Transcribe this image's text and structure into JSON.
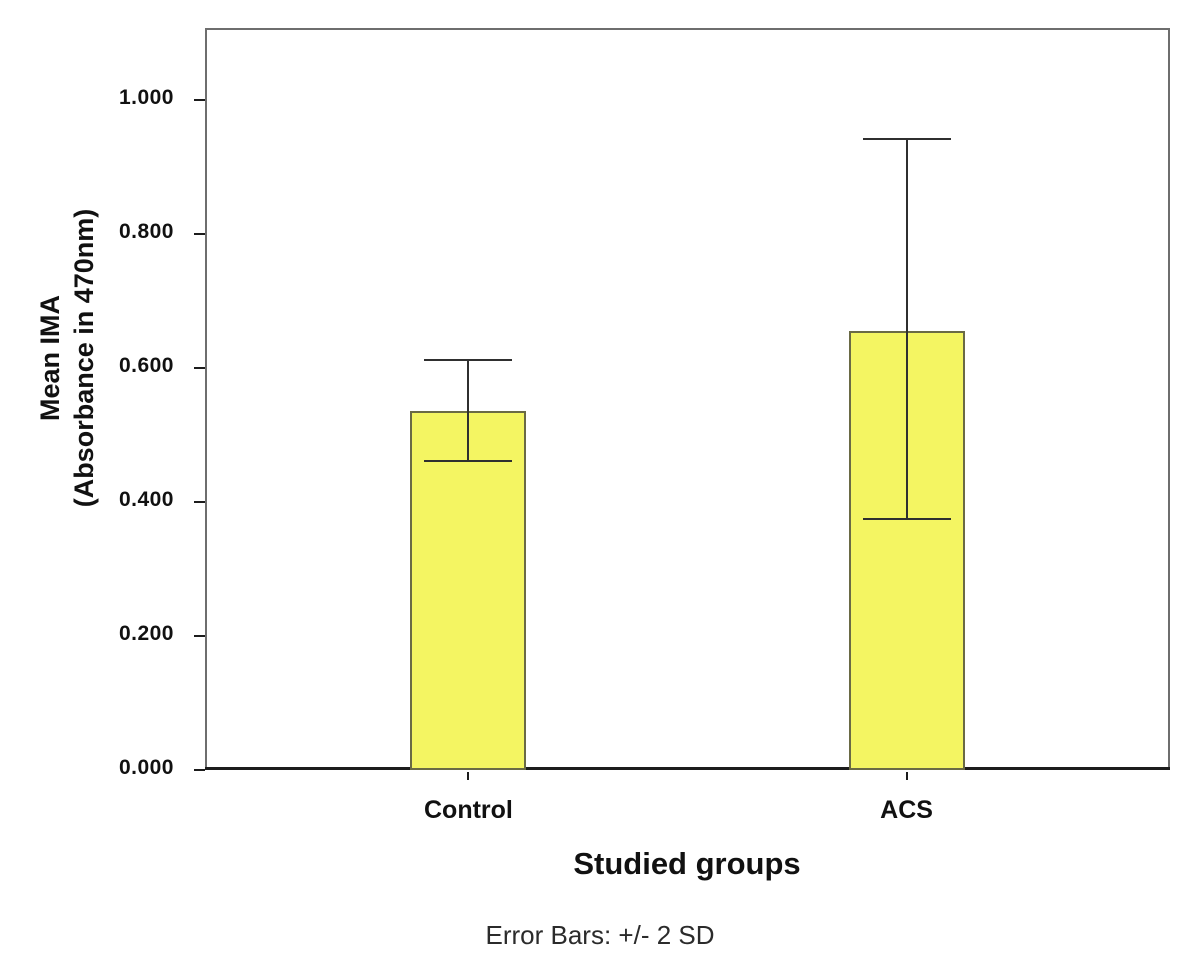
{
  "chart_data": {
    "type": "bar",
    "title": "",
    "categories": [
      "Control",
      "ACS"
    ],
    "values": [
      0.535,
      0.655
    ],
    "error_bars": {
      "label": "+/- 2 SD",
      "upper": [
        0.611,
        0.941
      ],
      "lower": [
        0.461,
        0.374
      ]
    },
    "xlabel": "Studied groups",
    "ylabel_lines": [
      "Mean IMA",
      "(Absorbance in 470nm)"
    ],
    "y_ticks": [
      0.0,
      0.2,
      0.4,
      0.6,
      0.8,
      1.0
    ],
    "y_tick_labels": [
      "0.000",
      "0.200",
      "0.400",
      "0.600",
      "0.800",
      "1.000"
    ],
    "ylim": [
      0,
      1.107
    ],
    "caption": "Error Bars: +/- 2 SD",
    "grid": false,
    "legend": "none",
    "colors": {
      "bar_fill": "#f4f562",
      "bar_border": "#6a6a45",
      "error_bar": "#2f2f2f",
      "frame": "#6e6e6e",
      "axis": "#1c1c1c",
      "text": "#111111"
    }
  }
}
